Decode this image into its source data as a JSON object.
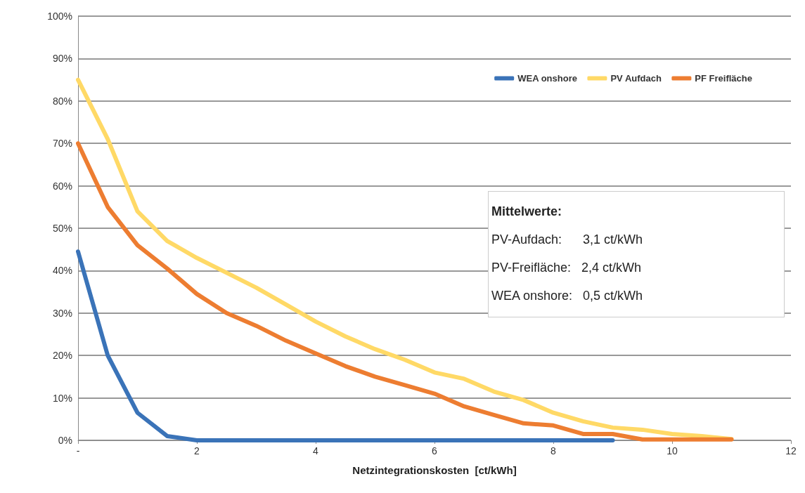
{
  "chart_data": {
    "type": "line",
    "xlabel": "Netzintegrationskosten  [ct/kWh]",
    "x": [
      0,
      0.5,
      1,
      1.5,
      2,
      2.5,
      3,
      3.5,
      4,
      4.5,
      5,
      5.5,
      6,
      6.5,
      7,
      7.5,
      8,
      8.5,
      9,
      9.5,
      10,
      10.5,
      11
    ],
    "series": [
      {
        "name": "WEA onshore",
        "color": "#3a73b8",
        "values": [
          44.5,
          20,
          6.5,
          1,
          0,
          0,
          0,
          0,
          0,
          0,
          0,
          0,
          0,
          0,
          0,
          0,
          0,
          0,
          0,
          null,
          null,
          null,
          null
        ]
      },
      {
        "name": "PV Aufdach",
        "color": "#ffd966",
        "values": [
          85,
          71,
          54,
          47,
          43,
          39.5,
          36,
          32,
          28,
          24.5,
          21.5,
          19,
          16,
          14.5,
          11.5,
          9.5,
          6.5,
          4.5,
          3,
          2.5,
          1.5,
          1,
          0.3
        ]
      },
      {
        "name": "PF Freifläche",
        "color": "#ed7d31",
        "values": [
          70,
          55,
          46,
          40.5,
          34.5,
          30,
          27,
          23.5,
          20.5,
          17.5,
          15,
          13,
          11,
          8,
          6,
          4,
          3.5,
          1.5,
          1.5,
          0.2,
          0.2,
          0.2,
          0.2
        ]
      }
    ],
    "xlim": [
      0,
      12
    ],
    "xticks": [
      {
        "value": 0,
        "label": "-"
      },
      2,
      4,
      6,
      8,
      10,
      12
    ],
    "ylim": [
      0,
      100
    ],
    "yticks": [
      {
        "value": 0,
        "label": "0%"
      },
      {
        "value": 10,
        "label": "10%"
      },
      {
        "value": 20,
        "label": "20%"
      },
      {
        "value": 30,
        "label": "30%"
      },
      {
        "value": 40,
        "label": "40%"
      },
      {
        "value": 50,
        "label": "50%"
      },
      {
        "value": 60,
        "label": "60%"
      },
      {
        "value": 70,
        "label": "70%"
      },
      {
        "value": 80,
        "label": "80%"
      },
      {
        "value": 90,
        "label": "90%"
      },
      {
        "value": 100,
        "label": "100%"
      }
    ],
    "grid": "y",
    "legend": "top right",
    "marker": "none",
    "line_style": "solid",
    "annotations": [
      "Mittelwerte:",
      "PV-Aufdach:      3,1 ct/kWh",
      "PV-Freifläche:   2,4 ct/kWh",
      "WEA onshore:   0,5 ct/kWh"
    ]
  }
}
